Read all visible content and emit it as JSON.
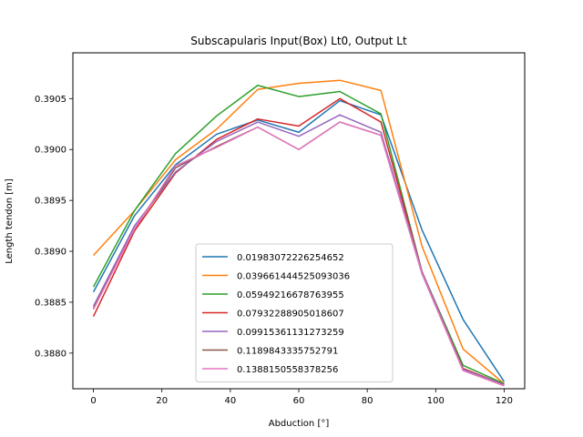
{
  "chart_data": {
    "type": "line",
    "title": "Subscapularis Input(Box) Lt0, Output Lt",
    "xlabel": "Abduction [°]",
    "ylabel": "Length tendon [m]",
    "xlim": [
      -6,
      126
    ],
    "ylim": [
      0.38765,
      0.39095
    ],
    "xticks": [
      0,
      20,
      40,
      60,
      80,
      100,
      120
    ],
    "yticks": [
      0.388,
      0.3885,
      0.389,
      0.3895,
      0.39,
      0.3905
    ],
    "ytick_labels": [
      "0.3880",
      "0.3885",
      "0.3890",
      "0.3895",
      "0.3900",
      "0.3905"
    ],
    "grid": false,
    "legend_position": "lower-center",
    "x": [
      0,
      12,
      24,
      36,
      48,
      60,
      72,
      84,
      96,
      108,
      120
    ],
    "series": [
      {
        "name": "0.01983072226254652",
        "color": "#1f77b4",
        "values": [
          0.3886,
          0.38935,
          0.38985,
          0.39015,
          0.39029,
          0.39017,
          0.39048,
          0.39034,
          0.38921,
          0.38833,
          0.38772
        ]
      },
      {
        "name": "0.039661444525093036",
        "color": "#ff7f0e",
        "values": [
          0.38896,
          0.3894,
          0.3899,
          0.3902,
          0.39059,
          0.39065,
          0.39068,
          0.39058,
          0.38905,
          0.38804,
          0.3877
        ]
      },
      {
        "name": "0.05949216678763955",
        "color": "#2ca02c",
        "values": [
          0.38865,
          0.3894,
          0.38996,
          0.39033,
          0.39063,
          0.39052,
          0.39057,
          0.39035,
          0.3888,
          0.38788,
          0.3877
        ]
      },
      {
        "name": "0.07932288905018607",
        "color": "#d62728",
        "values": [
          0.38836,
          0.3892,
          0.38977,
          0.3901,
          0.3903,
          0.39023,
          0.3905,
          0.39027,
          0.3888,
          0.38785,
          0.38769
        ]
      },
      {
        "name": "0.09915361131273259",
        "color": "#9467bd",
        "values": [
          0.38846,
          0.38925,
          0.38978,
          0.39008,
          0.39027,
          0.39013,
          0.39034,
          0.39017,
          0.3888,
          0.38784,
          0.38769
        ]
      },
      {
        "name": "0.1189843335752791",
        "color": "#8c564b",
        "values": [
          0.38844,
          0.38922,
          0.38982,
          0.39003,
          0.39022,
          0.39,
          0.39027,
          0.39014,
          0.38878,
          0.38783,
          0.38768
        ]
      },
      {
        "name": "0.1388150558378256",
        "color": "#e377c2",
        "values": [
          0.38843,
          0.38922,
          0.38984,
          0.39002,
          0.39022,
          0.39,
          0.39027,
          0.39014,
          0.38878,
          0.38783,
          0.38768
        ]
      }
    ]
  }
}
